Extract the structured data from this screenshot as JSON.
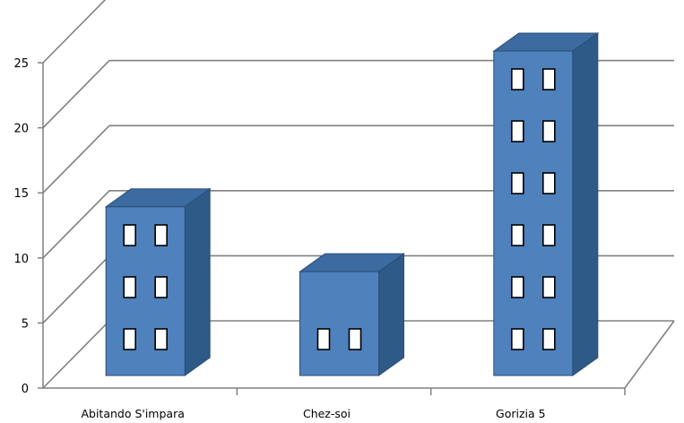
{
  "chart_data": {
    "type": "bar",
    "style": "3d-building-columns",
    "categories": [
      "Abitando S'impara",
      "Chez-soi",
      "Gorizia 5"
    ],
    "values": [
      13,
      8,
      25
    ],
    "ylim": [
      0,
      25
    ],
    "yticks": [
      0,
      5,
      10,
      15,
      20,
      25
    ],
    "title": "",
    "xlabel": "",
    "ylabel": "",
    "grid": true,
    "legend": "none",
    "colors": {
      "bar_front": "#4F81BD",
      "bar_side": "#2E5A87",
      "bar_top": "#3B6BA0",
      "bar_edge": "#2C4D75",
      "window": "#ffffff",
      "gridline": "#808080",
      "axis": "#808080"
    }
  }
}
